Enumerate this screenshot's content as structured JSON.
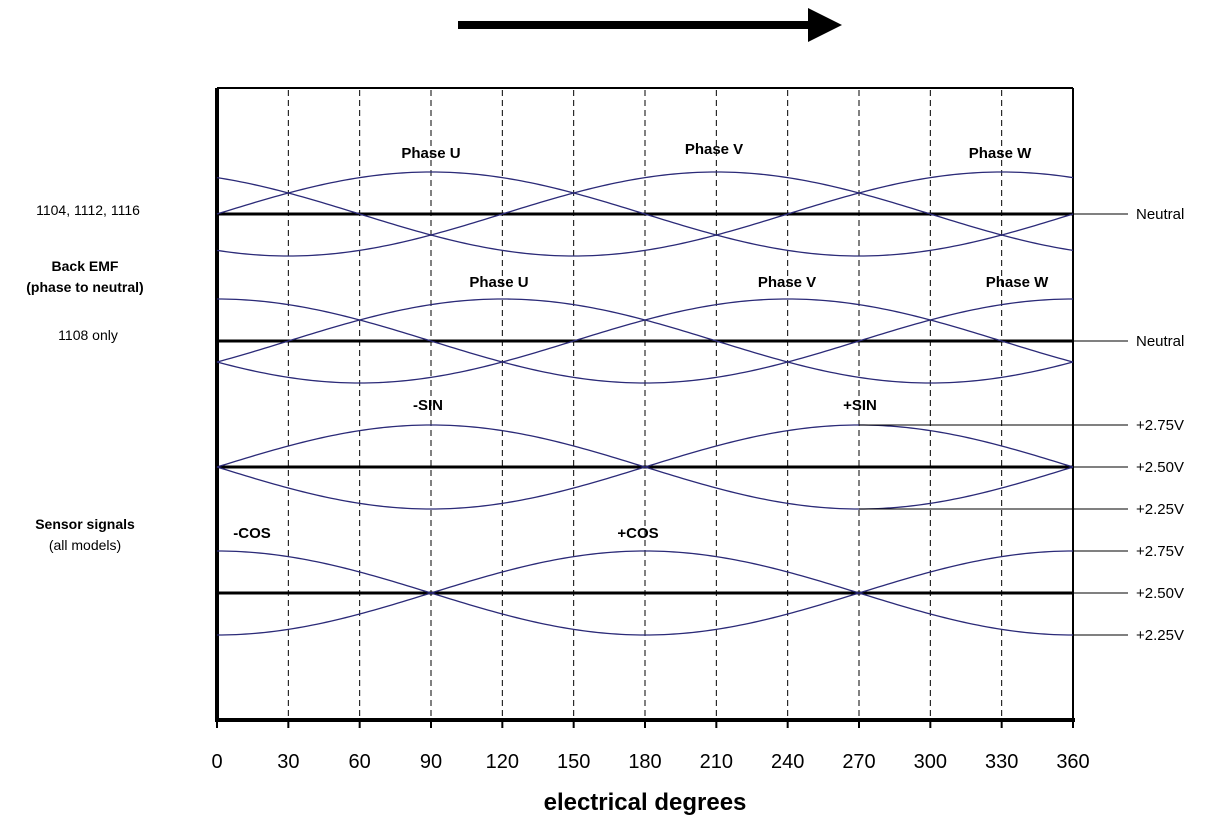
{
  "chart_data": {
    "type": "line",
    "xlabel": "electrical degrees",
    "xlim": [
      0,
      360
    ],
    "x_ticks": [
      "0",
      "30",
      "60",
      "90",
      "120",
      "150",
      "180",
      "210",
      "240",
      "270",
      "300",
      "330",
      "360"
    ],
    "grid": "vertical dashed lines every 30 degrees",
    "direction_arrow": "right",
    "side_labels": {
      "models_a": "1104, 1112, 1116",
      "back_emf_title": "Back EMF",
      "back_emf_sub": "(phase to neutral)",
      "models_b": "1108 only",
      "sensor_title": "Sensor signals",
      "sensor_sub": "(all models)"
    },
    "colors": {
      "curve": "#2b2a78",
      "axis": "#000000"
    },
    "panels": [
      {
        "name": "back-emf-1104-1112-1116",
        "baseline_label": "Neutral",
        "series": [
          {
            "name": "Phase U",
            "peak_deg": 90
          },
          {
            "name": "Phase V",
            "peak_deg": 210
          },
          {
            "name": "Phase W",
            "peak_deg": 330
          }
        ]
      },
      {
        "name": "back-emf-1108",
        "baseline_label": "Neutral",
        "series": [
          {
            "name": "Phase U",
            "peak_deg": 120
          },
          {
            "name": "Phase V",
            "peak_deg": 240
          },
          {
            "name": "Phase W",
            "peak_deg": 360
          }
        ]
      },
      {
        "name": "sin-sensor",
        "levels": [
          "+2.75V",
          "+2.50V",
          "+2.25V"
        ],
        "series": [
          {
            "name": "-SIN",
            "peak_deg": 90
          },
          {
            "name": "+SIN",
            "peak_deg": 270
          }
        ]
      },
      {
        "name": "cos-sensor",
        "levels": [
          "+2.75V",
          "+2.50V",
          "+2.25V"
        ],
        "series": [
          {
            "name": "-COS",
            "peak_deg": 0
          },
          {
            "name": "+COS",
            "peak_deg": 180
          }
        ]
      }
    ]
  }
}
